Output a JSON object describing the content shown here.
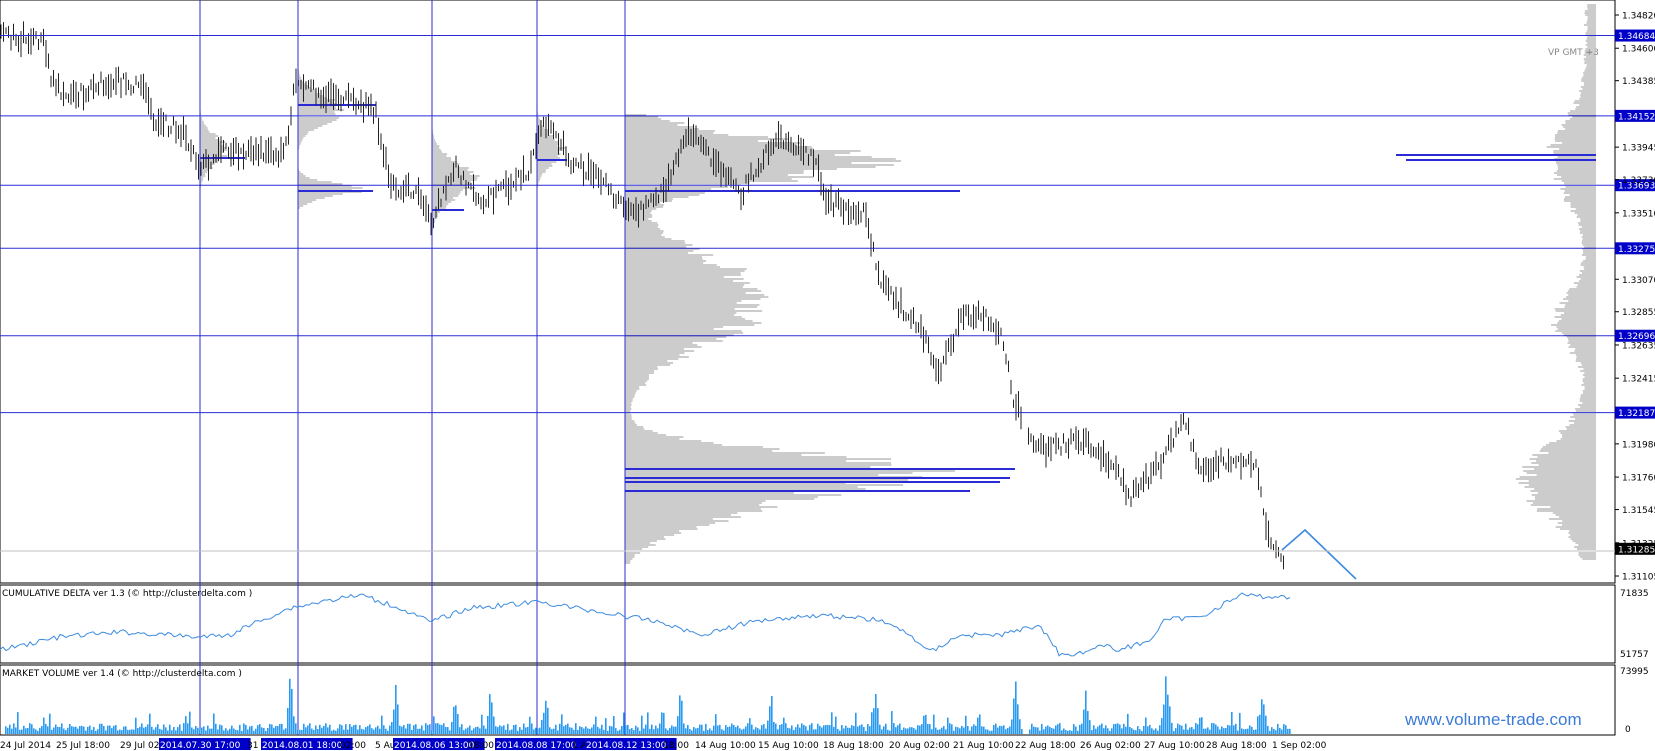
{
  "main_chart": {
    "gmt_label": "VP GMT +3",
    "price_ticks": [
      "1.34820",
      "1.34600",
      "1.34385",
      "1.33945",
      "1.33730",
      "1.33510",
      "1.33070",
      "1.32855",
      "1.32635",
      "1.32415",
      "1.31980",
      "1.31760",
      "1.31545",
      "1.31325",
      "1.31105"
    ],
    "level_labels": [
      "1.34684",
      "1.34152",
      "1.33693",
      "1.33275",
      "1.32696",
      "1.32187",
      "1.31285"
    ],
    "time_labels": [
      "24 Jul 2014",
      "25 Jul 18:00",
      "29 Jul 02:00",
      "2014.07.30 17:00",
      "31",
      "2014.08.01 18:00",
      "02:00",
      "5 Au",
      "2014.08.06 13:00",
      "18:00",
      "2014.08.08 17:00",
      "1 A",
      "2014.08.12 13:00",
      "18:00",
      "14 Aug 10:00",
      "15 Aug 10:00",
      "18 Aug 18:00",
      "20 Aug 02:00",
      "21 Aug 10:00",
      "22 Aug 18:00",
      "26 Aug 02:00",
      "27 Aug 10:00",
      "28 Aug 18:00",
      "1 Sep 02:00"
    ]
  },
  "cumulative_delta": {
    "title": "CUMULATIVE DELTA ver 1.3 (© http://clusterdelta.com )",
    "max_label": "71835",
    "min_label": "51757"
  },
  "market_volume": {
    "title": "MARKET VOLUME ver 1.4 (© http://clusterdelta.com )",
    "max_label": "73995",
    "min_label": "0"
  },
  "watermark": "www.volume-trade.com",
  "colors": {
    "level_line": "#2b2bd6",
    "label_bg": "#0000c8",
    "bar": "#222222",
    "profile": "#9a9a9a",
    "delta": "#3d8be0",
    "volume": "#2a9af0",
    "projection": "#3d8be0"
  }
}
